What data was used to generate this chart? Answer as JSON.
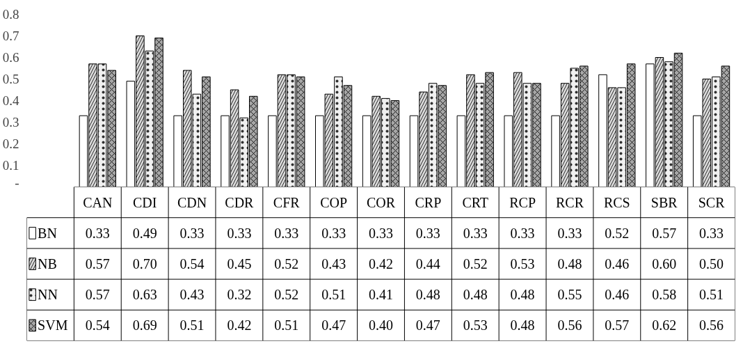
{
  "chart_data": {
    "type": "bar",
    "categories": [
      "CAN",
      "CDI",
      "CDN",
      "CDR",
      "CFR",
      "COP",
      "COR",
      "CRP",
      "CRT",
      "RCP",
      "RCR",
      "RCS",
      "SBR",
      "SCR"
    ],
    "series": [
      {
        "name": "BN",
        "color": "#ffffff",
        "values": [
          0.33,
          0.49,
          0.33,
          0.33,
          0.33,
          0.33,
          0.33,
          0.33,
          0.33,
          0.33,
          0.33,
          0.52,
          0.57,
          0.33
        ],
        "value_labels": [
          "0.33",
          "0.49",
          "0.33",
          "0.33",
          "0.33",
          "0.33",
          "0.33",
          "0.33",
          "0.33",
          "0.33",
          "0.33",
          "0.52",
          "0.57",
          "0.33"
        ]
      },
      {
        "name": "NB",
        "color": "#d9d9d9",
        "values": [
          0.57,
          0.7,
          0.54,
          0.45,
          0.52,
          0.43,
          0.42,
          0.44,
          0.52,
          0.53,
          0.48,
          0.46,
          0.6,
          0.5
        ],
        "value_labels": [
          "0.57",
          "0.70",
          "0.54",
          "0.45",
          "0.52",
          "0.43",
          "0.42",
          "0.44",
          "0.52",
          "0.53",
          "0.48",
          "0.46",
          "0.60",
          "0.50"
        ]
      },
      {
        "name": "NN",
        "color": "#f0f0f0",
        "values": [
          0.57,
          0.63,
          0.43,
          0.32,
          0.52,
          0.51,
          0.41,
          0.48,
          0.48,
          0.48,
          0.55,
          0.46,
          0.58,
          0.51
        ],
        "value_labels": [
          "0.57",
          "0.63",
          "0.43",
          "0.32",
          "0.52",
          "0.51",
          "0.41",
          "0.48",
          "0.48",
          "0.48",
          "0.55",
          "0.46",
          "0.58",
          "0.51"
        ]
      },
      {
        "name": "SVM",
        "color": "#a6a6a6",
        "values": [
          0.54,
          0.69,
          0.51,
          0.42,
          0.51,
          0.47,
          0.4,
          0.47,
          0.53,
          0.48,
          0.56,
          0.57,
          0.62,
          0.56
        ],
        "value_labels": [
          "0.54",
          "0.69",
          "0.51",
          "0.42",
          "0.51",
          "0.47",
          "0.40",
          "0.47",
          "0.53",
          "0.48",
          "0.56",
          "0.57",
          "0.62",
          "0.56"
        ]
      }
    ],
    "ylim": [
      0,
      0.8
    ],
    "yticks": [
      {
        "value": 0,
        "label": "-"
      },
      0.1,
      0.2,
      0.3,
      0.4,
      0.5,
      0.6,
      0.7,
      0.8
    ],
    "grid": false,
    "legend": "bottom left"
  }
}
